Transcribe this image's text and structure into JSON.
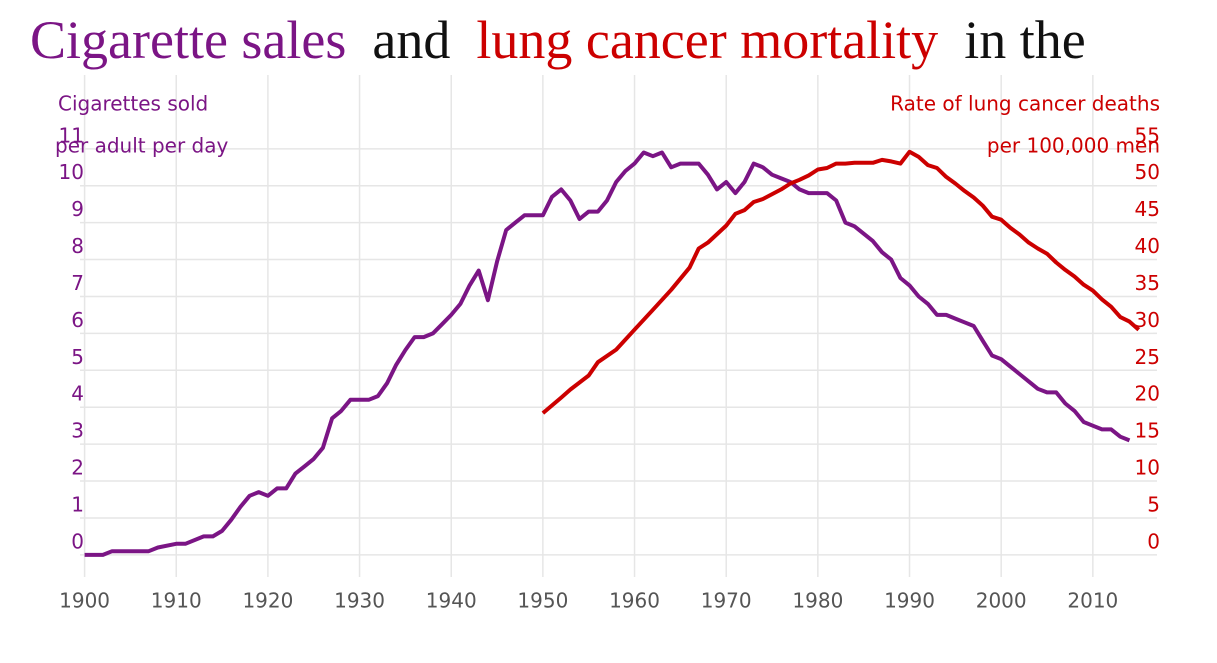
{
  "chart_data": {
    "type": "line",
    "title_parts": [
      {
        "text": "Cigarette sales",
        "color": "#7b1585"
      },
      {
        "text": "and",
        "color": "#111111"
      },
      {
        "text": "lung cancer mortality",
        "color": "#cc0000"
      },
      {
        "text": "in the",
        "color": "#111111"
      }
    ],
    "y_label": [
      "Cigarettes sold",
      "per adult per day"
    ],
    "y2_label": [
      "Rate of lung cancer deaths",
      "per 100,000 men"
    ],
    "xlim": [
      1899.5,
      2017
    ],
    "xticks": [
      1900,
      1910,
      1920,
      1930,
      1940,
      1950,
      1960,
      1970,
      1980,
      1990,
      2000,
      2010
    ],
    "ylim": [
      -0.6,
      13
    ],
    "yticks": [
      0,
      1,
      2,
      3,
      4,
      5,
      6,
      7,
      8,
      9,
      10,
      11
    ],
    "y2lim": [
      -3,
      65
    ],
    "y2ticks": [
      0,
      5,
      10,
      15,
      20,
      25,
      30,
      35,
      40,
      45,
      50,
      55
    ],
    "grid": true,
    "series": [
      {
        "name": "Cigarettes sold per adult per day",
        "color": "#7b1585",
        "axis": "y",
        "x": [
          1900,
          1902,
          1903,
          1907,
          1908,
          1910,
          1911,
          1913,
          1914,
          1915,
          1916,
          1917,
          1918,
          1919,
          1920,
          1921,
          1922,
          1923,
          1924,
          1925,
          1926,
          1927,
          1928,
          1929,
          1930,
          1931,
          1932,
          1933,
          1934,
          1935,
          1936,
          1937,
          1938,
          1939,
          1940,
          1941,
          1942,
          1943,
          1944,
          1945,
          1946,
          1947,
          1948,
          1949,
          1950,
          1951,
          1952,
          1953,
          1954,
          1955,
          1956,
          1957,
          1958,
          1959,
          1960,
          1961,
          1962,
          1963,
          1964,
          1965,
          1966,
          1967,
          1968,
          1969,
          1970,
          1971,
          1972,
          1973,
          1974,
          1975,
          1976,
          1977,
          1978,
          1979,
          1980,
          1981,
          1982,
          1983,
          1984,
          1985,
          1986,
          1987,
          1988,
          1989,
          1990,
          1991,
          1992,
          1993,
          1994,
          1995,
          1996,
          1997,
          1998,
          1999,
          2000,
          2001,
          2002,
          2003,
          2004,
          2005,
          2006,
          2007,
          2008,
          2009,
          2010,
          2011,
          2012,
          2013,
          2014
        ],
        "values": [
          0,
          0,
          0.1,
          0.1,
          0.2,
          0.3,
          0.3,
          0.5,
          0.5,
          0.65,
          0.95,
          1.3,
          1.6,
          1.7,
          1.6,
          1.8,
          1.8,
          2.2,
          2.4,
          2.6,
          2.9,
          3.7,
          3.9,
          4.2,
          4.2,
          4.2,
          4.3,
          4.65,
          5.15,
          5.55,
          5.9,
          5.9,
          6.0,
          6.25,
          6.5,
          6.8,
          7.3,
          7.7,
          6.9,
          7.95,
          8.8,
          9.0,
          9.2,
          9.2,
          9.2,
          9.7,
          9.9,
          9.6,
          9.1,
          9.3,
          9.3,
          9.6,
          10.1,
          10.4,
          10.6,
          10.9,
          10.8,
          10.9,
          10.5,
          10.6,
          10.6,
          10.6,
          10.3,
          9.9,
          10.1,
          9.8,
          10.1,
          10.6,
          10.5,
          10.3,
          10.2,
          10.1,
          9.9,
          9.8,
          9.8,
          9.8,
          9.6,
          9.0,
          8.9,
          8.7,
          8.5,
          8.2,
          8.0,
          7.5,
          7.3,
          7.0,
          6.8,
          6.5,
          6.5,
          6.4,
          6.3,
          6.2,
          5.8,
          5.4,
          5.3,
          5.1,
          4.9,
          4.7,
          4.5,
          4.4,
          4.4,
          4.1,
          3.9,
          3.6,
          3.5,
          3.4,
          3.4,
          3.2,
          3.1
        ]
      },
      {
        "name": "Rate of lung cancer deaths per 100,000 men",
        "color": "#cc0000",
        "axis": "y2",
        "x": [
          1950,
          1952,
          1953,
          1955,
          1956,
          1958,
          1960,
          1962,
          1964,
          1966,
          1967,
          1968,
          1970,
          1971,
          1972,
          1973,
          1974,
          1976,
          1977,
          1978,
          1979,
          1980,
          1981,
          1982,
          1983,
          1984,
          1986,
          1987,
          1988,
          1989,
          1990,
          1991,
          1992,
          1993,
          1994,
          1995,
          1996,
          1997,
          1998,
          1999,
          2000,
          2001,
          2002,
          2003,
          2004,
          2005,
          2006,
          2007,
          2008,
          2009,
          2010,
          2011,
          2012,
          2013,
          2014,
          2015
        ],
        "values": [
          19.2,
          21.3,
          22.4,
          24.3,
          26.1,
          27.8,
          30.5,
          33.2,
          35.9,
          38.9,
          41.5,
          42.3,
          44.6,
          46.2,
          46.7,
          47.8,
          48.2,
          49.5,
          50.3,
          50.8,
          51.4,
          52.2,
          52.4,
          53.0,
          53.0,
          53.1,
          53.1,
          53.5,
          53.3,
          53.0,
          54.6,
          53.9,
          52.8,
          52.4,
          51.2,
          50.3,
          49.3,
          48.4,
          47.3,
          45.8,
          45.4,
          44.3,
          43.4,
          42.3,
          41.5,
          40.8,
          39.6,
          38.6,
          37.7,
          36.6,
          35.8,
          34.6,
          33.6,
          32.2,
          31.6,
          30.5
        ]
      }
    ]
  }
}
